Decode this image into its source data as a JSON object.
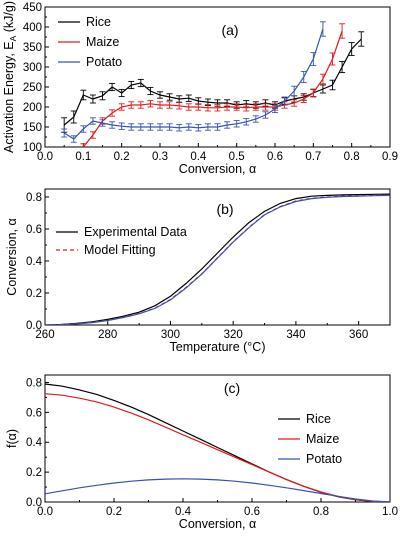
{
  "chart_data": [
    {
      "type": "line",
      "panel_label": "(a)",
      "xlabel": "Conversion, α",
      "ylabel": "Activation Energy, EA (kJ/g)",
      "ylabel_main": "Activation Energy, E",
      "ylabel_sub": "A",
      "ylabel_unit": " (kJ/g)",
      "xlim": [
        0.0,
        0.9
      ],
      "ylim": [
        100,
        450
      ],
      "xticks": [
        "0.0",
        "0.1",
        "0.2",
        "0.3",
        "0.4",
        "0.5",
        "0.6",
        "0.7",
        "0.8",
        "0.9"
      ],
      "yticks": [
        "100",
        "150",
        "200",
        "250",
        "300",
        "350",
        "400",
        "450"
      ],
      "legend_position": "top-left",
      "error_bars": true,
      "series": [
        {
          "name": "Rice",
          "color": "#000000",
          "x": [
            0.05,
            0.075,
            0.1,
            0.125,
            0.15,
            0.175,
            0.2,
            0.225,
            0.25,
            0.275,
            0.3,
            0.325,
            0.35,
            0.375,
            0.4,
            0.425,
            0.45,
            0.475,
            0.5,
            0.525,
            0.55,
            0.575,
            0.6,
            0.625,
            0.65,
            0.675,
            0.7,
            0.725,
            0.75,
            0.775,
            0.8,
            0.825
          ],
          "y": [
            155,
            175,
            230,
            220,
            228,
            250,
            235,
            255,
            260,
            240,
            230,
            225,
            220,
            222,
            215,
            212,
            210,
            210,
            205,
            208,
            205,
            210,
            205,
            215,
            220,
            225,
            235,
            245,
            255,
            300,
            345,
            370
          ],
          "err": [
            18,
            15,
            12,
            10,
            10,
            9,
            9,
            9,
            9,
            9,
            8,
            8,
            8,
            8,
            8,
            8,
            8,
            8,
            8,
            8,
            8,
            8,
            8,
            8,
            8,
            8,
            9,
            10,
            12,
            14,
            16,
            18
          ]
        },
        {
          "name": "Maize",
          "color": "#e31a1c",
          "x": [
            0.1,
            0.125,
            0.15,
            0.175,
            0.2,
            0.225,
            0.25,
            0.275,
            0.3,
            0.325,
            0.35,
            0.375,
            0.4,
            0.425,
            0.45,
            0.475,
            0.5,
            0.525,
            0.55,
            0.575,
            0.6,
            0.625,
            0.65,
            0.675,
            0.7,
            0.725,
            0.75,
            0.775
          ],
          "y": [
            100,
            130,
            165,
            185,
            200,
            205,
            205,
            208,
            205,
            205,
            203,
            200,
            200,
            198,
            198,
            200,
            200,
            198,
            200,
            200,
            200,
            205,
            210,
            220,
            235,
            270,
            320,
            390
          ],
          "err": [
            8,
            8,
            8,
            8,
            8,
            8,
            8,
            8,
            8,
            8,
            8,
            8,
            8,
            8,
            8,
            8,
            8,
            8,
            8,
            8,
            8,
            8,
            8,
            9,
            10,
            12,
            15,
            18
          ]
        },
        {
          "name": "Potato",
          "color": "#3653b4",
          "x": [
            0.05,
            0.075,
            0.1,
            0.125,
            0.15,
            0.175,
            0.2,
            0.225,
            0.25,
            0.275,
            0.3,
            0.325,
            0.35,
            0.375,
            0.4,
            0.425,
            0.45,
            0.475,
            0.5,
            0.525,
            0.55,
            0.575,
            0.6,
            0.625,
            0.65,
            0.675,
            0.7,
            0.725
          ],
          "y": [
            135,
            120,
            145,
            165,
            160,
            155,
            152,
            150,
            150,
            150,
            150,
            150,
            148,
            150,
            148,
            150,
            150,
            155,
            158,
            163,
            170,
            180,
            195,
            215,
            240,
            275,
            320,
            395
          ],
          "err": [
            10,
            8,
            8,
            8,
            8,
            8,
            8,
            8,
            8,
            8,
            8,
            8,
            8,
            8,
            8,
            8,
            8,
            8,
            8,
            8,
            8,
            8,
            9,
            10,
            12,
            14,
            16,
            18
          ]
        }
      ]
    },
    {
      "type": "line",
      "panel_label": "(b)",
      "xlabel": "Temperature (°C)",
      "ylabel": "Conversion, α",
      "xlim": [
        260,
        370
      ],
      "ylim": [
        0.0,
        0.85
      ],
      "xticks": [
        "260",
        "280",
        "300",
        "320",
        "340",
        "360"
      ],
      "yticks": [
        "0.0",
        "0.2",
        "0.4",
        "0.6",
        "0.8"
      ],
      "legend_position": "top-left",
      "series": [
        {
          "name": "Experimental Data",
          "color": "#000000",
          "style": "solid",
          "x": [
            260,
            265,
            270,
            275,
            280,
            285,
            290,
            295,
            300,
            305,
            310,
            315,
            320,
            325,
            330,
            335,
            340,
            345,
            350,
            355,
            360,
            365,
            370
          ],
          "y": [
            0.0,
            0.003,
            0.01,
            0.02,
            0.035,
            0.055,
            0.08,
            0.12,
            0.18,
            0.26,
            0.35,
            0.45,
            0.55,
            0.64,
            0.71,
            0.76,
            0.79,
            0.805,
            0.81,
            0.813,
            0.815,
            0.817,
            0.818
          ]
        },
        {
          "name": "Model Fitting",
          "color": "#e31a1c",
          "style": "dashed",
          "x": [
            260,
            265,
            270,
            275,
            280,
            285,
            290,
            295,
            300,
            305,
            310,
            315,
            320,
            325,
            330,
            335,
            340,
            345,
            350,
            355,
            360,
            365,
            370
          ],
          "y": [
            0.0,
            0.002,
            0.008,
            0.016,
            0.03,
            0.048,
            0.072,
            0.105,
            0.16,
            0.235,
            0.32,
            0.42,
            0.52,
            0.61,
            0.69,
            0.74,
            0.775,
            0.792,
            0.8,
            0.805,
            0.807,
            0.81,
            0.812
          ]
        },
        {
          "name": "",
          "color": "#3653b4",
          "style": "solid",
          "x": [
            260,
            265,
            270,
            275,
            280,
            285,
            290,
            295,
            300,
            305,
            310,
            315,
            320,
            325,
            330,
            335,
            340,
            345,
            350,
            355,
            360,
            365,
            370
          ],
          "y": [
            0.0,
            0.002,
            0.007,
            0.015,
            0.028,
            0.046,
            0.07,
            0.103,
            0.157,
            0.232,
            0.318,
            0.418,
            0.518,
            0.608,
            0.688,
            0.738,
            0.772,
            0.79,
            0.798,
            0.803,
            0.805,
            0.808,
            0.81
          ]
        }
      ]
    },
    {
      "type": "line",
      "panel_label": "(c)",
      "xlabel": "Conversion, α",
      "ylabel": "f(α)",
      "xlim": [
        0.0,
        1.0
      ],
      "ylim": [
        0.0,
        0.85
      ],
      "xticks": [
        "0.0",
        "0.2",
        "0.4",
        "0.6",
        "0.8",
        "1.0"
      ],
      "yticks": [
        "0.0",
        "0.2",
        "0.4",
        "0.6",
        "0.8"
      ],
      "legend_position": "top-right",
      "series": [
        {
          "name": "Rice",
          "color": "#000000",
          "x": [
            0.0,
            0.05,
            0.1,
            0.15,
            0.2,
            0.25,
            0.3,
            0.35,
            0.4,
            0.45,
            0.5,
            0.55,
            0.6,
            0.65,
            0.7,
            0.75,
            0.8,
            0.85,
            0.9,
            0.95,
            1.0
          ],
          "y": [
            0.79,
            0.775,
            0.75,
            0.72,
            0.68,
            0.635,
            0.585,
            0.53,
            0.475,
            0.42,
            0.365,
            0.31,
            0.255,
            0.2,
            0.15,
            0.105,
            0.065,
            0.035,
            0.015,
            0.004,
            0.0
          ]
        },
        {
          "name": "Maize",
          "color": "#e31a1c",
          "x": [
            0.0,
            0.05,
            0.1,
            0.15,
            0.2,
            0.25,
            0.3,
            0.35,
            0.4,
            0.45,
            0.5,
            0.55,
            0.6,
            0.65,
            0.7,
            0.75,
            0.8,
            0.85,
            0.9,
            0.95,
            1.0
          ],
          "y": [
            0.725,
            0.715,
            0.695,
            0.67,
            0.635,
            0.595,
            0.55,
            0.5,
            0.45,
            0.4,
            0.35,
            0.3,
            0.25,
            0.2,
            0.15,
            0.105,
            0.067,
            0.037,
            0.016,
            0.004,
            0.0
          ]
        },
        {
          "name": "Potato",
          "color": "#3653b4",
          "x": [
            0.0,
            0.05,
            0.1,
            0.15,
            0.2,
            0.25,
            0.3,
            0.35,
            0.4,
            0.45,
            0.5,
            0.55,
            0.6,
            0.65,
            0.7,
            0.75,
            0.8,
            0.85,
            0.9,
            0.95,
            1.0
          ],
          "y": [
            0.055,
            0.075,
            0.095,
            0.112,
            0.127,
            0.139,
            0.148,
            0.153,
            0.155,
            0.153,
            0.148,
            0.139,
            0.127,
            0.112,
            0.095,
            0.076,
            0.057,
            0.038,
            0.02,
            0.007,
            0.0
          ]
        }
      ]
    }
  ]
}
